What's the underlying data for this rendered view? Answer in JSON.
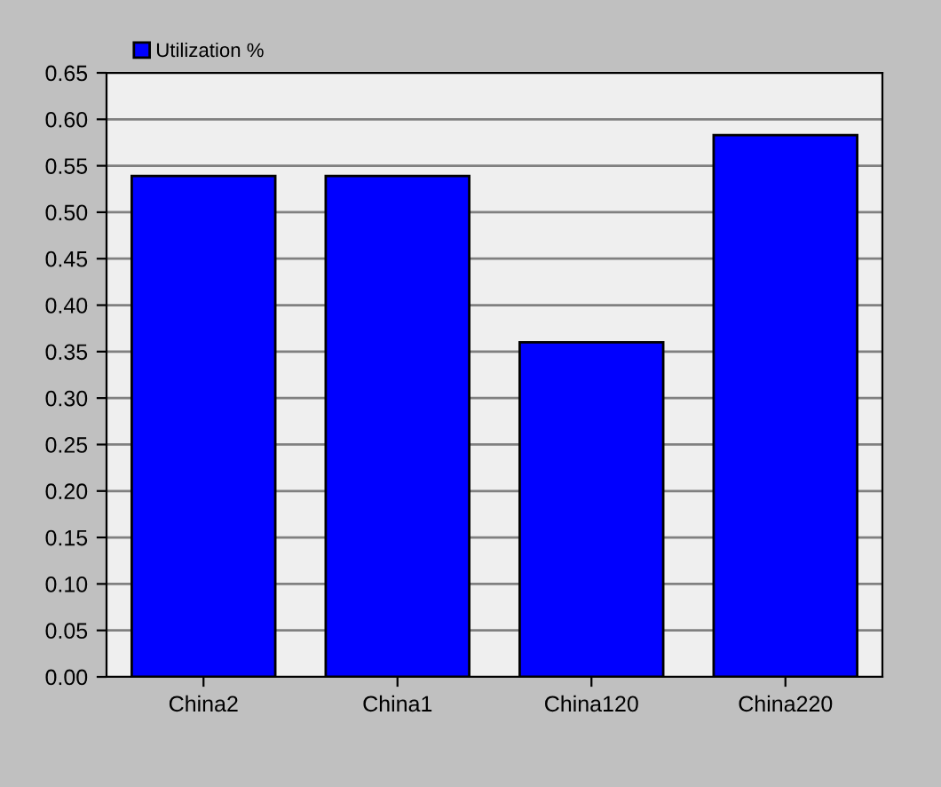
{
  "chart_data": {
    "type": "bar",
    "categories": [
      "China2",
      "China1",
      "China120",
      "China220"
    ],
    "series": [
      {
        "name": "Utilization %",
        "color": "#0000ff",
        "values": [
          0.539,
          0.539,
          0.36,
          0.583
        ]
      }
    ],
    "ylim": [
      0,
      0.65
    ],
    "yticks": [
      {
        "value": 0,
        "label": "0.00"
      },
      {
        "value": 0.05,
        "label": "0.05"
      },
      {
        "value": 0.1,
        "label": "0.10"
      },
      {
        "value": 0.15,
        "label": "0.15"
      },
      {
        "value": 0.2,
        "label": "0.20"
      },
      {
        "value": 0.25,
        "label": "0.25"
      },
      {
        "value": 0.3,
        "label": "0.30"
      },
      {
        "value": 0.35,
        "label": "0.35"
      },
      {
        "value": 0.4,
        "label": "0.40"
      },
      {
        "value": 0.45,
        "label": "0.45"
      },
      {
        "value": 0.5,
        "label": "0.50"
      },
      {
        "value": 0.55,
        "label": "0.55"
      },
      {
        "value": 0.6,
        "label": "0.60"
      },
      {
        "value": 0.65,
        "label": "0.65"
      }
    ],
    "grid": "y",
    "legend": "top left"
  }
}
